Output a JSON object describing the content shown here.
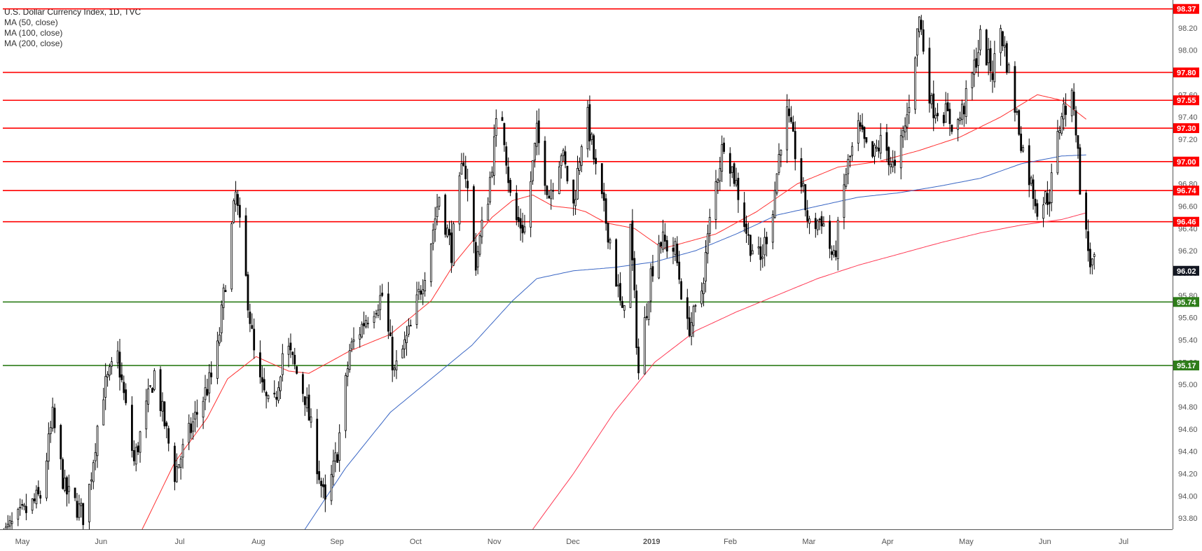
{
  "legend": {
    "title": "U.S. Dollar Currency Index, 1D, TVC",
    "ma50": "MA (50, close)",
    "ma100": "MA (100, close)",
    "ma200": "MA (200, close)"
  },
  "colors": {
    "resistance": "#ff0000",
    "support": "#2e7d1a",
    "ma50": "#ff3030",
    "ma100": "#3a66c4",
    "ma200": "#ff3a55",
    "candle_up_fill": "#ffffff",
    "candle_down_fill": "#000000",
    "last_price_tag": "#131722"
  },
  "chart_data": {
    "type": "candlestick",
    "ylim": [
      93.7,
      98.45
    ],
    "y_ticks": [
      "93.80",
      "94.00",
      "94.20",
      "94.40",
      "94.60",
      "94.80",
      "95.00",
      "95.20",
      "95.40",
      "95.60",
      "95.80",
      "96.00",
      "96.20",
      "96.40",
      "96.60",
      "96.80",
      "97.00",
      "97.20",
      "97.40",
      "97.60",
      "97.80",
      "98.00",
      "98.20"
    ],
    "x_ticks": [
      "May",
      "Jun",
      "Jul",
      "Aug",
      "Sep",
      "Oct",
      "Nov",
      "Dec",
      "2019",
      "Feb",
      "Mar",
      "Apr",
      "May",
      "Jun",
      "Jul"
    ],
    "bold_x_ticks": [
      "2019"
    ],
    "horizontal_levels": [
      {
        "value": 98.37,
        "label": "98.37",
        "kind": "resistance"
      },
      {
        "value": 97.8,
        "label": "97.80",
        "kind": "resistance"
      },
      {
        "value": 97.55,
        "label": "97.55",
        "kind": "resistance"
      },
      {
        "value": 97.3,
        "label": "97.30",
        "kind": "resistance"
      },
      {
        "value": 97.0,
        "label": "97.00",
        "kind": "resistance"
      },
      {
        "value": 96.74,
        "label": "96.74",
        "kind": "resistance"
      },
      {
        "value": 96.46,
        "label": "96.46",
        "kind": "resistance"
      },
      {
        "value": 95.74,
        "label": "95.74",
        "kind": "support"
      },
      {
        "value": 95.17,
        "label": "95.17",
        "kind": "support"
      }
    ],
    "last_price": {
      "value": 96.02,
      "label": "96.02"
    },
    "close_path": [
      [
        0,
        93.65
      ],
      [
        18,
        94.0
      ],
      [
        24,
        94.7
      ],
      [
        30,
        94.05
      ],
      [
        40,
        93.8
      ],
      [
        48,
        94.9
      ],
      [
        56,
        95.25
      ],
      [
        64,
        94.3
      ],
      [
        74,
        95.1
      ],
      [
        84,
        94.2
      ],
      [
        94,
        94.7
      ],
      [
        104,
        95.15
      ],
      [
        110,
        96.1
      ],
      [
        114,
        96.7
      ],
      [
        118,
        96.1
      ],
      [
        124,
        95.1
      ],
      [
        132,
        94.7
      ],
      [
        138,
        95.4
      ],
      [
        148,
        94.9
      ],
      [
        158,
        93.9
      ],
      [
        164,
        94.4
      ],
      [
        170,
        95.3
      ],
      [
        178,
        95.6
      ],
      [
        186,
        95.8
      ],
      [
        192,
        95.1
      ],
      [
        200,
        95.5
      ],
      [
        208,
        96.1
      ],
      [
        214,
        96.7
      ],
      [
        220,
        96.2
      ],
      [
        226,
        97.05
      ],
      [
        232,
        96.1
      ],
      [
        238,
        96.7
      ],
      [
        244,
        97.6
      ],
      [
        250,
        96.5
      ],
      [
        256,
        96.4
      ],
      [
        262,
        97.25
      ],
      [
        268,
        96.7
      ],
      [
        274,
        97.1
      ],
      [
        280,
        96.6
      ],
      [
        286,
        97.5
      ],
      [
        292,
        96.8
      ],
      [
        298,
        96.3
      ],
      [
        304,
        95.6
      ],
      [
        308,
        96.4
      ],
      [
        312,
        95.1
      ],
      [
        318,
        96.0
      ],
      [
        322,
        96.3
      ],
      [
        330,
        96.2
      ],
      [
        336,
        95.5
      ],
      [
        342,
        95.7
      ],
      [
        348,
        96.6
      ],
      [
        354,
        97.2
      ],
      [
        360,
        96.8
      ],
      [
        366,
        96.3
      ],
      [
        372,
        96.1
      ],
      [
        378,
        96.6
      ],
      [
        384,
        97.5
      ],
      [
        390,
        97.0
      ],
      [
        396,
        96.4
      ],
      [
        402,
        96.5
      ],
      [
        408,
        96.1
      ],
      [
        414,
        96.9
      ],
      [
        420,
        97.3
      ],
      [
        426,
        97.0
      ],
      [
        432,
        97.2
      ],
      [
        438,
        96.9
      ],
      [
        444,
        97.4
      ],
      [
        450,
        98.3
      ],
      [
        456,
        97.5
      ],
      [
        462,
        97.45
      ],
      [
        468,
        97.3
      ],
      [
        474,
        97.6
      ],
      [
        480,
        98.1
      ],
      [
        486,
        97.8
      ],
      [
        490,
        98.2
      ],
      [
        496,
        97.6
      ],
      [
        502,
        97.0
      ],
      [
        508,
        96.6
      ],
      [
        514,
        96.7
      ],
      [
        520,
        97.45
      ],
      [
        526,
        97.55
      ],
      [
        530,
        96.55
      ],
      [
        534,
        96.1
      ],
      [
        538,
        96.02
      ]
    ],
    "ma50_path": [
      [
        68,
        93.7
      ],
      [
        84,
        94.3
      ],
      [
        100,
        94.7
      ],
      [
        110,
        95.05
      ],
      [
        124,
        95.25
      ],
      [
        140,
        95.12
      ],
      [
        150,
        95.1
      ],
      [
        170,
        95.3
      ],
      [
        190,
        95.45
      ],
      [
        210,
        95.75
      ],
      [
        222,
        96.1
      ],
      [
        240,
        96.5
      ],
      [
        250,
        96.65
      ],
      [
        260,
        96.7
      ],
      [
        270,
        96.6
      ],
      [
        280,
        96.58
      ],
      [
        286,
        96.55
      ],
      [
        296,
        96.45
      ],
      [
        310,
        96.4
      ],
      [
        324,
        96.22
      ],
      [
        336,
        96.28
      ],
      [
        350,
        96.35
      ],
      [
        370,
        96.55
      ],
      [
        390,
        96.8
      ],
      [
        410,
        96.95
      ],
      [
        430,
        97.0
      ],
      [
        450,
        97.1
      ],
      [
        470,
        97.22
      ],
      [
        490,
        97.4
      ],
      [
        508,
        97.6
      ],
      [
        520,
        97.55
      ],
      [
        532,
        97.38
      ]
    ],
    "ma100_path": [
      [
        148,
        93.7
      ],
      [
        168,
        94.25
      ],
      [
        190,
        94.75
      ],
      [
        210,
        95.05
      ],
      [
        230,
        95.35
      ],
      [
        250,
        95.75
      ],
      [
        262,
        95.95
      ],
      [
        280,
        96.02
      ],
      [
        300,
        96.05
      ],
      [
        320,
        96.1
      ],
      [
        340,
        96.2
      ],
      [
        360,
        96.35
      ],
      [
        380,
        96.52
      ],
      [
        400,
        96.6
      ],
      [
        420,
        96.68
      ],
      [
        440,
        96.72
      ],
      [
        460,
        96.78
      ],
      [
        480,
        96.85
      ],
      [
        500,
        96.98
      ],
      [
        520,
        97.05
      ],
      [
        532,
        97.06
      ]
    ],
    "ma200_path": [
      [
        260,
        93.7
      ],
      [
        280,
        94.2
      ],
      [
        300,
        94.75
      ],
      [
        320,
        95.2
      ],
      [
        340,
        95.48
      ],
      [
        360,
        95.65
      ],
      [
        380,
        95.8
      ],
      [
        400,
        95.95
      ],
      [
        420,
        96.07
      ],
      [
        440,
        96.17
      ],
      [
        460,
        96.27
      ],
      [
        480,
        96.36
      ],
      [
        500,
        96.43
      ],
      [
        520,
        96.48
      ],
      [
        532,
        96.54
      ]
    ]
  }
}
